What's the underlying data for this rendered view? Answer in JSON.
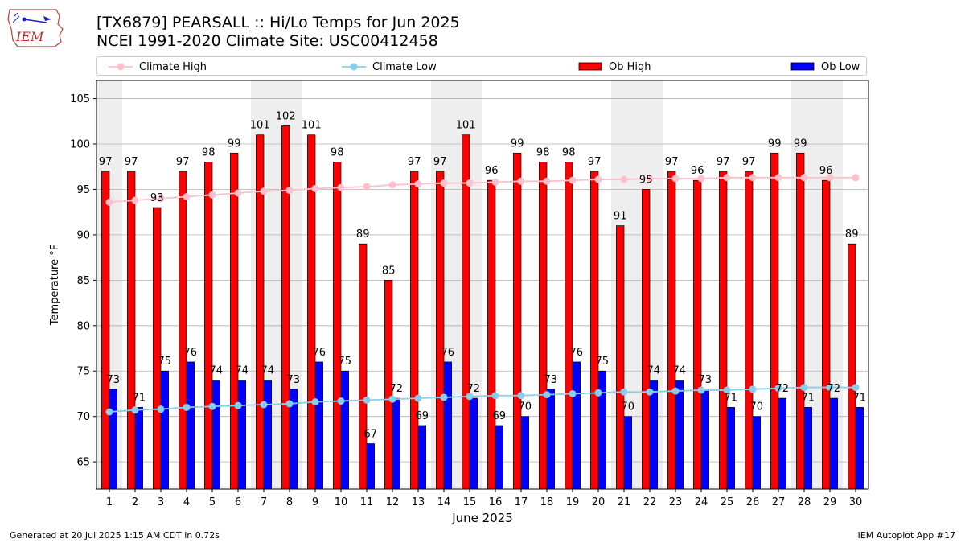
{
  "header": {
    "title_line1": "[TX6879] PEARSALL :: Hi/Lo Temps for Jun 2025",
    "title_line2": "NCEI 1991-2020 Climate Site: USC00412458",
    "logo_text": "IEM"
  },
  "footer": {
    "left": "Generated at 20 Jul 2025 1:15 AM CDT in 0.72s",
    "right": "IEM Autoplot App #17"
  },
  "colors": {
    "ob_high": "#ff0000",
    "ob_low": "#0000ff",
    "climate_high": "#ffc0cb",
    "climate_low": "#87ceeb",
    "weekend_shade": "#eeeeee",
    "grid": "#b0b0b0"
  },
  "legend": [
    {
      "label": "Climate High",
      "kind": "line",
      "color": "#ffc0cb"
    },
    {
      "label": "Climate Low",
      "kind": "line",
      "color": "#87ceeb"
    },
    {
      "label": "Ob High",
      "kind": "box",
      "color": "#ff0000"
    },
    {
      "label": "Ob Low",
      "kind": "box",
      "color": "#0000ff"
    }
  ],
  "chart_data": {
    "type": "bar",
    "xlabel": "June 2025",
    "ylabel": "Temperature °F",
    "ylim": [
      62,
      107
    ],
    "yticks": [
      65,
      70,
      75,
      80,
      85,
      90,
      95,
      100,
      105
    ],
    "grid": true,
    "legend_position": "top",
    "categories": [
      "1",
      "2",
      "3",
      "4",
      "5",
      "6",
      "7",
      "8",
      "9",
      "10",
      "11",
      "12",
      "13",
      "14",
      "15",
      "16",
      "17",
      "18",
      "19",
      "20",
      "21",
      "22",
      "23",
      "24",
      "25",
      "26",
      "27",
      "28",
      "29",
      "30"
    ],
    "shaded_days": [
      1,
      7,
      8,
      14,
      15,
      21,
      22,
      28,
      29
    ],
    "series": [
      {
        "name": "Ob High",
        "kind": "bar",
        "values": [
          97,
          97,
          93,
          97,
          98,
          99,
          101,
          102,
          101,
          98,
          89,
          85,
          97,
          97,
          101,
          96,
          99,
          98,
          98,
          97,
          91,
          95,
          97,
          96,
          97,
          97,
          99,
          99,
          96,
          89
        ]
      },
      {
        "name": "Ob Low",
        "kind": "bar",
        "values": [
          73,
          71,
          75,
          76,
          74,
          74,
          74,
          73,
          76,
          75,
          67,
          72,
          69,
          76,
          72,
          69,
          70,
          73,
          76,
          75,
          70,
          74,
          74,
          73,
          71,
          70,
          72,
          71,
          72,
          71
        ]
      },
      {
        "name": "Climate High",
        "kind": "line",
        "values": [
          93.6,
          93.8,
          94.0,
          94.2,
          94.4,
          94.6,
          94.8,
          94.9,
          95.1,
          95.2,
          95.3,
          95.5,
          95.6,
          95.7,
          95.7,
          95.8,
          95.9,
          95.9,
          96.0,
          96.1,
          96.1,
          96.2,
          96.2,
          96.2,
          96.3,
          96.3,
          96.3,
          96.3,
          96.3,
          96.3
        ]
      },
      {
        "name": "Climate Low",
        "kind": "line",
        "values": [
          70.5,
          70.7,
          70.8,
          71.0,
          71.1,
          71.2,
          71.3,
          71.4,
          71.6,
          71.7,
          71.8,
          71.9,
          72.0,
          72.1,
          72.2,
          72.3,
          72.3,
          72.4,
          72.5,
          72.6,
          72.7,
          72.7,
          72.8,
          72.9,
          72.9,
          73.0,
          73.1,
          73.2,
          73.2,
          73.2
        ]
      }
    ]
  }
}
